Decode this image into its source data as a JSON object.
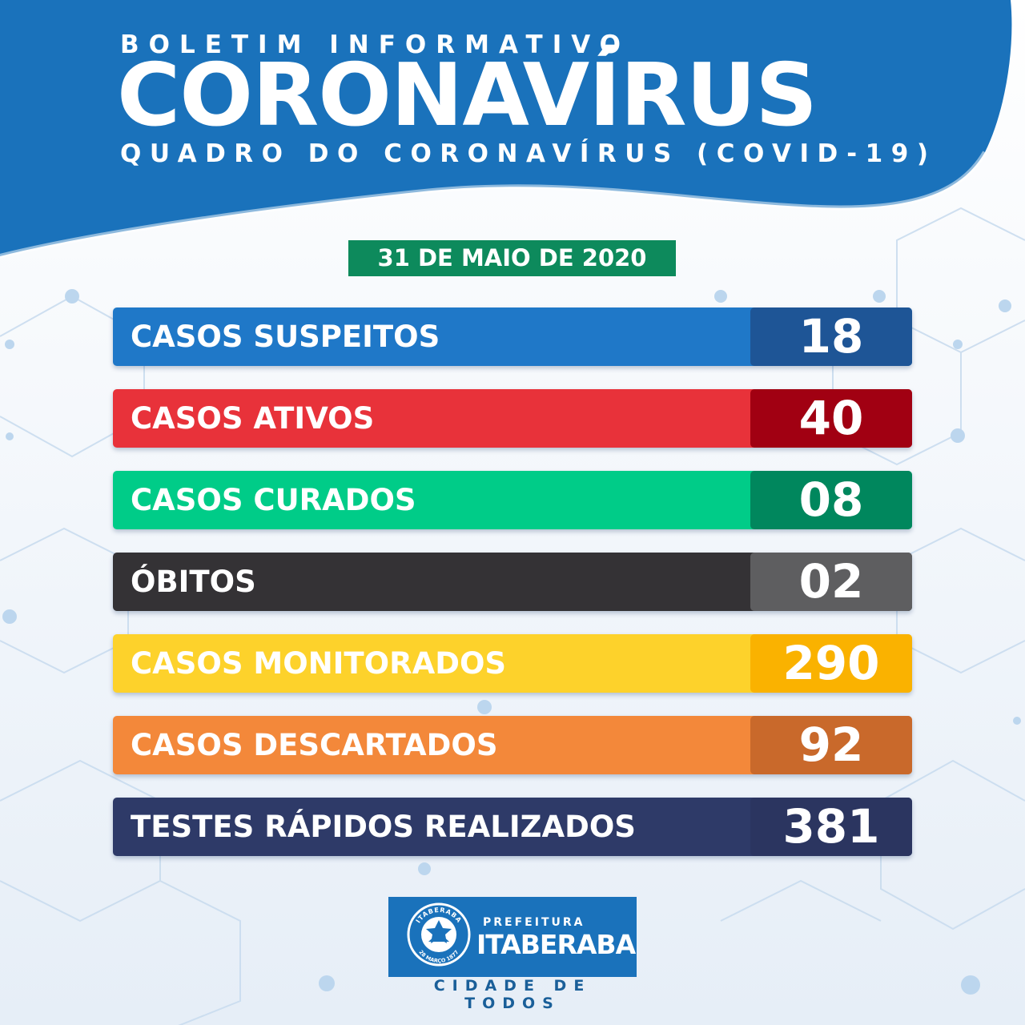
{
  "header": {
    "kicker": "BOLETIM INFORMATIVO",
    "title": "CORONAVÍRUS",
    "subtitle": "QUADRO DO CORONAVÍRUS (COVID-19)"
  },
  "date": "31 DE MAIO DE 2020",
  "stats": [
    {
      "label": "CASOS SUSPEITOS",
      "value": "18",
      "color": "#1f78c8",
      "value_color": "#1e5596"
    },
    {
      "label": "CASOS ATIVOS",
      "value": "40",
      "color": "#e8323a",
      "value_color": "#a10012"
    },
    {
      "label": "CASOS CURADOS",
      "value": "08",
      "color": "#00cc88",
      "value_color": "#00875d"
    },
    {
      "label": "ÓBITOS",
      "value": "02",
      "color": "#343235",
      "value_color": "#5e5e60"
    },
    {
      "label": "CASOS MONITORADOS",
      "value": "290",
      "color": "#fdd22b",
      "value_color": "#fab200"
    },
    {
      "label": "CASOS DESCARTADOS",
      "value": "92",
      "color": "#f3883a",
      "value_color": "#c9692b"
    },
    {
      "label": "TESTES RÁPIDOS REALIZADOS",
      "value": "381",
      "color": "#2e3a68",
      "value_color": "#2b3560"
    }
  ],
  "logo": {
    "small": "PREFEITURA",
    "big": "ITABERABA",
    "slogan": "CIDADE DE TODOS",
    "seal_top": "ITABERABA",
    "seal_bottom": "28 MARÇO 1877"
  },
  "colors": {
    "header_blue": "#1a72bb",
    "date_green": "#0d8a5c"
  }
}
